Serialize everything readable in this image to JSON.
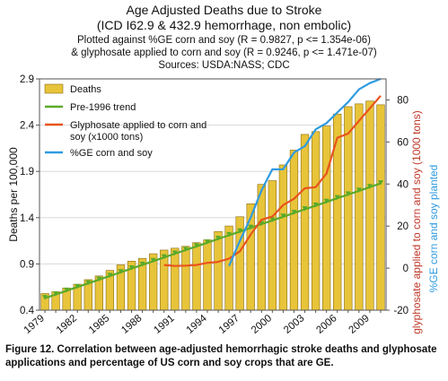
{
  "chart_data": {
    "type": "bar",
    "title": "Age Adjusted Deaths due to Stroke",
    "subtitle": "(ICD I62.9 & 432.9 hemorrhage, non embolic)",
    "notes": [
      "Plotted against %GE corn and soy (R = 0.9827, p <= 1.354e-06)",
      "& glyphosate applied to corn and soy (R = 0.9246, p <= 1.471e-07)",
      "Sources: USDA:NASS; CDC"
    ],
    "ylabel": "Deaths per 100,000",
    "y2label": "glyphosate applied to corn and soy (1000 tons)",
    "y3label": "%GE corn and soy planted",
    "ylim": [
      0.4,
      2.9
    ],
    "y2lim": [
      -20,
      90
    ],
    "yticks": [
      "0.4",
      "0.9",
      "1.4",
      "1.9",
      "2.4",
      "2.9"
    ],
    "y2ticks": [
      "-20",
      "0",
      "20",
      "40",
      "60",
      "80"
    ],
    "xticks": [
      "1979",
      "1982",
      "1985",
      "1988",
      "1991",
      "1994",
      "1997",
      "2000",
      "2003",
      "2006",
      "2009"
    ],
    "x": [
      1979,
      1980,
      1981,
      1982,
      1983,
      1984,
      1985,
      1986,
      1987,
      1988,
      1989,
      1990,
      1991,
      1992,
      1993,
      1994,
      1995,
      1996,
      1997,
      1998,
      1999,
      2000,
      2001,
      2002,
      2003,
      2004,
      2005,
      2006,
      2007,
      2008,
      2009,
      2010
    ],
    "legend_position": "top-left",
    "grid": "horizontal",
    "series": [
      {
        "name": "Deaths",
        "kind": "bar",
        "axis": "left",
        "color": "#e8c43a",
        "values": [
          0.58,
          0.6,
          0.64,
          0.68,
          0.73,
          0.77,
          0.83,
          0.89,
          0.93,
          0.96,
          1.01,
          1.05,
          1.07,
          1.09,
          1.13,
          1.16,
          1.25,
          1.31,
          1.41,
          1.55,
          1.76,
          1.8,
          1.97,
          2.13,
          2.3,
          2.33,
          2.39,
          2.52,
          2.6,
          2.63,
          2.66,
          2.62
        ]
      },
      {
        "name": "Pre-1996 trend",
        "kind": "line",
        "axis": "left",
        "color": "#5aaa2a",
        "values": [
          0.53,
          0.57,
          0.61,
          0.65,
          0.69,
          0.73,
          0.77,
          0.81,
          0.85,
          0.89,
          0.93,
          0.97,
          1.01,
          1.05,
          1.09,
          1.13,
          1.17,
          1.21,
          1.25,
          1.29,
          1.33,
          1.37,
          1.41,
          1.45,
          1.49,
          1.53,
          1.57,
          1.61,
          1.65,
          1.69,
          1.73,
          1.77
        ]
      },
      {
        "name": "Glyphosate applied to corn and soy (x1000 tons)",
        "kind": "line",
        "axis": "right",
        "color": "#e8541c",
        "values": [
          null,
          null,
          null,
          null,
          null,
          null,
          null,
          null,
          null,
          null,
          null,
          1.5,
          1.0,
          1.2,
          1.5,
          2.5,
          3.0,
          4.5,
          8.0,
          16.0,
          23.0,
          24.5,
          30.0,
          33.0,
          38.0,
          38.5,
          45.0,
          62.0,
          64.0,
          70.0,
          76.0,
          82.0
        ]
      },
      {
        "name": "%GE corn and soy",
        "kind": "line",
        "axis": "right",
        "color": "#2f9be0",
        "values": [
          null,
          null,
          null,
          null,
          null,
          null,
          null,
          null,
          null,
          null,
          null,
          null,
          null,
          null,
          null,
          null,
          null,
          1.0,
          13.0,
          24.0,
          37.0,
          47.0,
          47.0,
          55.0,
          58.0,
          66.0,
          69.0,
          74.0,
          79.0,
          85.0,
          88.0,
          90.0
        ]
      }
    ]
  },
  "caption": "Figure 12. Correlation between age-adjusted hemorrhagic stroke deaths and glyphosate applications and percentage of US corn and soy crops that are GE."
}
